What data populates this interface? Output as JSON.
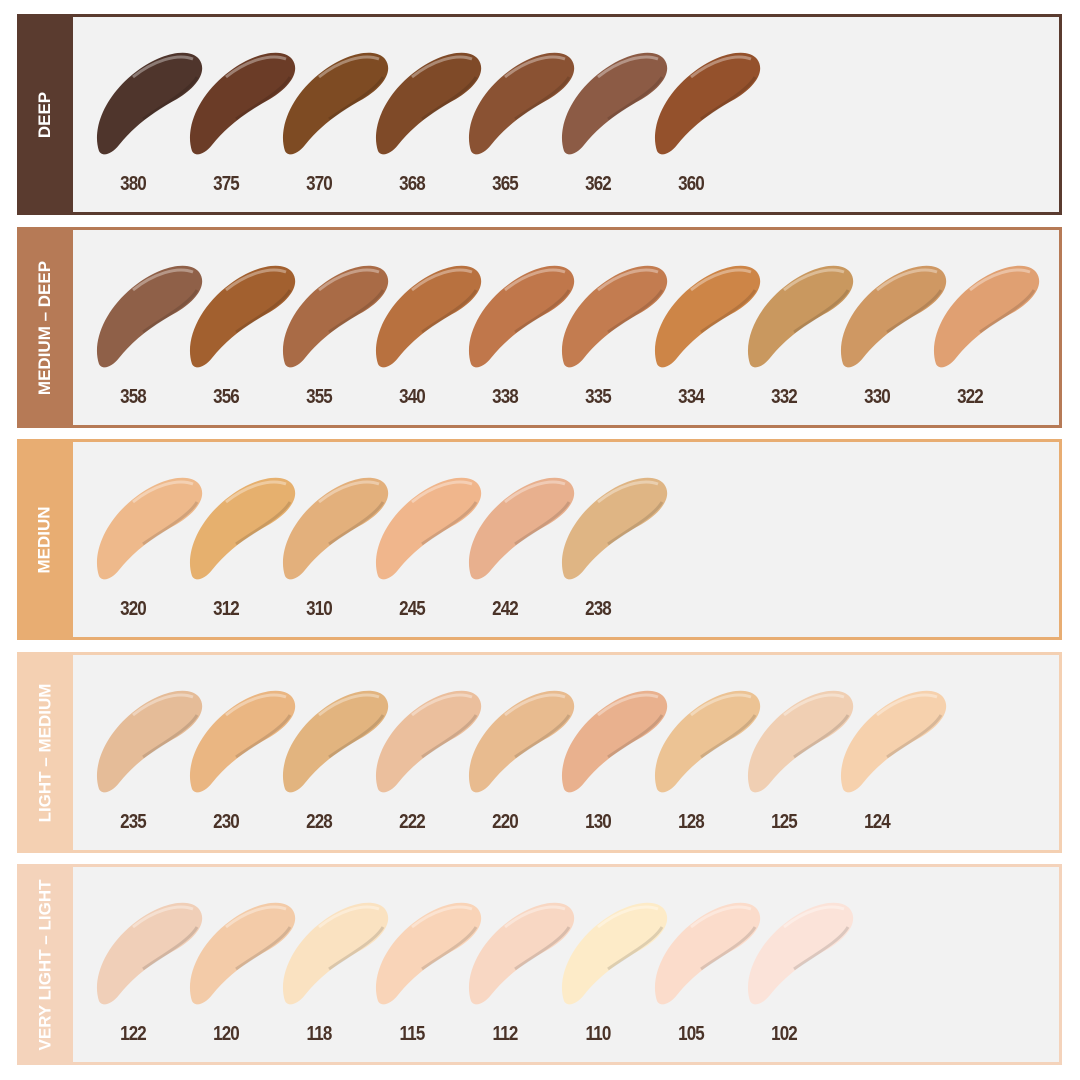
{
  "label_color": "#4a3328",
  "panel_background": "#f2f2f2",
  "groups": [
    {
      "name": "DEEP",
      "color": "#5a3b2f",
      "shades": [
        {
          "code": "380",
          "color": "#4f352c"
        },
        {
          "code": "375",
          "color": "#6b3c27"
        },
        {
          "code": "370",
          "color": "#7e4b23"
        },
        {
          "code": "368",
          "color": "#7f4a28"
        },
        {
          "code": "365",
          "color": "#8a5233"
        },
        {
          "code": "362",
          "color": "#8c5b45"
        },
        {
          "code": "360",
          "color": "#94512c"
        }
      ]
    },
    {
      "name": "MEDIUM – DEEP",
      "color": "#b67a56",
      "shades": [
        {
          "code": "358",
          "color": "#8f6048"
        },
        {
          "code": "356",
          "color": "#a2602f"
        },
        {
          "code": "355",
          "color": "#a96b46"
        },
        {
          "code": "340",
          "color": "#b8713f"
        },
        {
          "code": "338",
          "color": "#c0774b"
        },
        {
          "code": "335",
          "color": "#c37c50"
        },
        {
          "code": "334",
          "color": "#cd8547"
        },
        {
          "code": "332",
          "color": "#c9985f"
        },
        {
          "code": "330",
          "color": "#cf9863"
        },
        {
          "code": "322",
          "color": "#e0a072"
        }
      ]
    },
    {
      "name": "MEDIUN",
      "color": "#e8ad72",
      "shades": [
        {
          "code": "320",
          "color": "#eeb98b"
        },
        {
          "code": "312",
          "color": "#e6b06e"
        },
        {
          "code": "310",
          "color": "#e3b07c"
        },
        {
          "code": "245",
          "color": "#f0b68c"
        },
        {
          "code": "242",
          "color": "#e8b08e"
        },
        {
          "code": "238",
          "color": "#dfb584"
        }
      ]
    },
    {
      "name": "LIGHT – MEDIUM",
      "color": "#f4d0b2",
      "shades": [
        {
          "code": "235",
          "color": "#e5bc98"
        },
        {
          "code": "230",
          "color": "#eab682"
        },
        {
          "code": "228",
          "color": "#e2b47f"
        },
        {
          "code": "222",
          "color": "#ebbf9d"
        },
        {
          "code": "220",
          "color": "#e8bb8f"
        },
        {
          "code": "130",
          "color": "#e9b18e"
        },
        {
          "code": "128",
          "color": "#ecc394"
        },
        {
          "code": "125",
          "color": "#f0cfb3"
        },
        {
          "code": "124",
          "color": "#f6d1ad"
        }
      ]
    },
    {
      "name": "VERY LIGHT – LIGHT",
      "color": "#f4d3bb",
      "shades": [
        {
          "code": "122",
          "color": "#f0cfb8"
        },
        {
          "code": "120",
          "color": "#f3cba8"
        },
        {
          "code": "118",
          "color": "#fae2c1"
        },
        {
          "code": "115",
          "color": "#f9d4b8"
        },
        {
          "code": "112",
          "color": "#f8d7c3"
        },
        {
          "code": "110",
          "color": "#fdebc8"
        },
        {
          "code": "105",
          "color": "#fbdccb"
        },
        {
          "code": "102",
          "color": "#fbe3d9"
        }
      ]
    }
  ]
}
